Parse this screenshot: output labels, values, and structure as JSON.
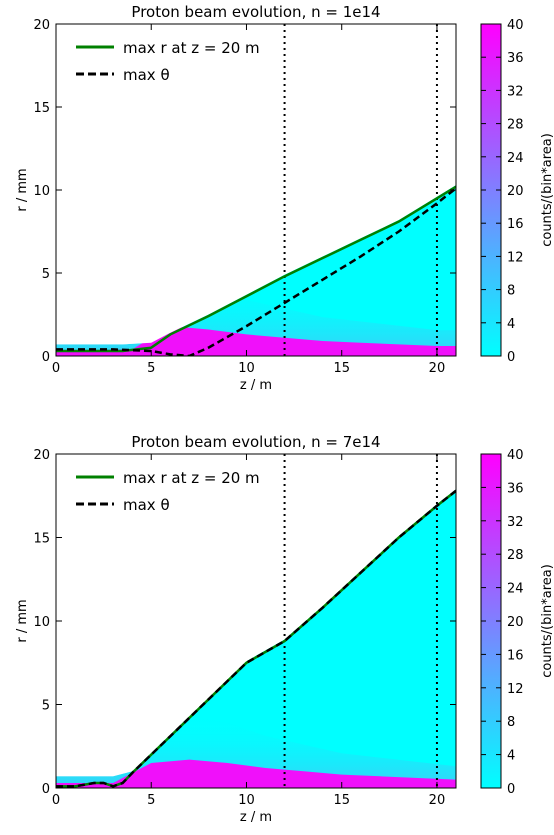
{
  "chart_data": [
    {
      "type": "heatmap",
      "title": "Proton beam evolution, n = 1e14",
      "xlabel": "z / m",
      "ylabel": "r / mm",
      "xlim": [
        0,
        21
      ],
      "ylim": [
        0,
        20
      ],
      "xticks": [
        0,
        5,
        10,
        15,
        20
      ],
      "yticks": [
        0,
        5,
        10,
        15,
        20
      ],
      "colorbar": {
        "label": "counts/(bin*area)",
        "range": [
          0,
          40
        ],
        "ticks": [
          0,
          4,
          8,
          12,
          16,
          20,
          24,
          28,
          32,
          36,
          40
        ],
        "colors": [
          "#00ffff",
          "#ff00ff"
        ]
      },
      "vlines": [
        12,
        20
      ],
      "legend_position": "top-left",
      "series": [
        {
          "name": "max r at z = 20 m",
          "style": "solid",
          "color": "#008000",
          "x": [
            0,
            3.5,
            5,
            6,
            8,
            10,
            12,
            14,
            16,
            18,
            20,
            21
          ],
          "y": [
            0.3,
            0.3,
            0.5,
            1.3,
            2.4,
            3.6,
            4.8,
            5.9,
            7.0,
            8.1,
            9.5,
            10.2
          ]
        },
        {
          "name": "max θ",
          "style": "dashed",
          "color": "#000000",
          "x": [
            0,
            1,
            2,
            3,
            4,
            5,
            6,
            7,
            8,
            10,
            12,
            14,
            16,
            18,
            20,
            21
          ],
          "y": [
            0.4,
            0.4,
            0.4,
            0.4,
            0.35,
            0.3,
            0.1,
            0.0,
            0.5,
            1.8,
            3.2,
            4.6,
            6.0,
            7.5,
            9.2,
            10.1
          ]
        }
      ],
      "envelope": {
        "z": [
          0,
          3.5,
          5,
          6,
          8,
          10,
          12,
          14,
          16,
          18,
          20,
          21
        ],
        "r_max": [
          0.7,
          0.7,
          0.8,
          1.4,
          2.5,
          3.7,
          4.9,
          6.0,
          7.1,
          8.2,
          9.6,
          10.3
        ]
      },
      "core": {
        "z": [
          0,
          4,
          6,
          8,
          10,
          12,
          14,
          16,
          18,
          20,
          21
        ],
        "r": [
          0.3,
          0.4,
          1.8,
          1.6,
          1.3,
          1.1,
          0.9,
          0.8,
          0.7,
          0.6,
          0.6
        ]
      }
    },
    {
      "type": "heatmap",
      "title": "Proton beam evolution, n = 7e14",
      "xlabel": "z / m",
      "ylabel": "r / mm",
      "xlim": [
        0,
        21
      ],
      "ylim": [
        0,
        20
      ],
      "xticks": [
        0,
        5,
        10,
        15,
        20
      ],
      "yticks": [
        0,
        5,
        10,
        15,
        20
      ],
      "colorbar": {
        "label": "counts/(bin*area)",
        "range": [
          0,
          40
        ],
        "ticks": [
          0,
          4,
          8,
          12,
          16,
          20,
          24,
          28,
          32,
          36,
          40
        ],
        "colors": [
          "#00ffff",
          "#ff00ff"
        ]
      },
      "vlines": [
        12,
        20
      ],
      "legend_position": "top-left",
      "series": [
        {
          "name": "max r at z = 20 m",
          "style": "solid",
          "color": "#008000",
          "x": [
            0,
            1,
            2,
            2.5,
            3,
            3.5,
            4,
            5,
            6,
            8,
            10,
            12,
            14,
            16,
            18,
            20,
            21
          ],
          "y": [
            0.1,
            0.1,
            0.3,
            0.3,
            0.1,
            0.3,
            0.9,
            2.0,
            3.1,
            5.3,
            7.5,
            8.8,
            10.8,
            12.9,
            15.0,
            16.9,
            17.8
          ]
        },
        {
          "name": "max θ",
          "style": "dashed",
          "color": "#000000",
          "x": [
            0,
            1,
            2,
            2.5,
            3,
            3.5,
            4,
            5,
            6,
            8,
            10,
            12,
            14,
            16,
            18,
            20,
            21
          ],
          "y": [
            0.1,
            0.1,
            0.3,
            0.3,
            0.1,
            0.3,
            0.9,
            2.0,
            3.1,
            5.3,
            7.5,
            8.8,
            10.8,
            12.9,
            15.0,
            16.9,
            17.8
          ]
        }
      ],
      "envelope": {
        "z": [
          0,
          3,
          4,
          5,
          6,
          8,
          10,
          12,
          14,
          16,
          18,
          20,
          21
        ],
        "r_max": [
          0.7,
          0.7,
          1.0,
          2.1,
          3.2,
          5.4,
          7.6,
          8.9,
          10.9,
          13.0,
          15.1,
          17.0,
          17.9
        ]
      },
      "core": {
        "z": [
          0,
          3,
          4,
          5,
          7,
          9,
          11,
          13,
          15,
          17,
          19,
          21
        ],
        "r": [
          0.3,
          0.3,
          0.9,
          1.5,
          1.7,
          1.5,
          1.2,
          1.0,
          0.8,
          0.7,
          0.6,
          0.5
        ]
      }
    }
  ]
}
